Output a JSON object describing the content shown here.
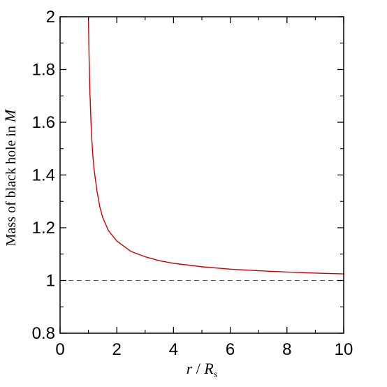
{
  "chart_data": {
    "type": "line",
    "x_range": [
      0,
      10
    ],
    "y_range": [
      0.8,
      2
    ],
    "x_ticks": [
      "0",
      "2",
      "4",
      "6",
      "8",
      "10"
    ],
    "y_ticks": [
      "0.8",
      "1",
      "1.2",
      "1.4",
      "1.6",
      "1.8",
      "2"
    ],
    "xlabel": {
      "prefix": "r",
      "separator": " / ",
      "symbol": "R",
      "subscript": "s"
    },
    "ylabel": {
      "text": "Mass of black hole in ",
      "symbol": "M"
    },
    "grid": false,
    "series": [
      {
        "color": "#cc0000",
        "x": [
          1.0,
          1.02,
          1.05,
          1.1,
          1.15,
          1.2,
          1.3,
          1.4,
          1.5,
          1.7,
          2.0,
          2.5,
          3.0,
          3.5,
          4.0,
          5.0,
          6.0,
          7.0,
          8.0,
          9.0,
          10.0
        ],
        "y": [
          2.0,
          1.86,
          1.72,
          1.57,
          1.48,
          1.42,
          1.34,
          1.28,
          1.24,
          1.19,
          1.15,
          1.11,
          1.09,
          1.075,
          1.065,
          1.052,
          1.043,
          1.037,
          1.032,
          1.028,
          1.025
        ]
      }
    ],
    "reference_line": {
      "y": 1,
      "color": "#555555",
      "style": "dashed"
    }
  }
}
